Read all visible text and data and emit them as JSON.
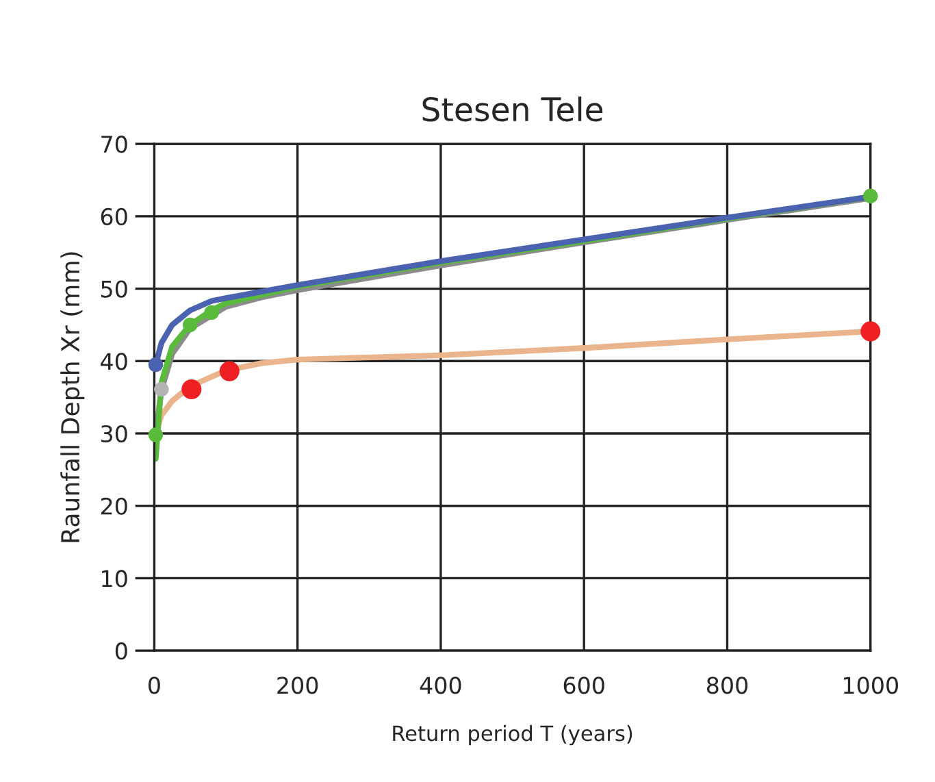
{
  "chart_data": {
    "type": "line",
    "title": "Stesen Tele",
    "xlabel": "Return period T (years)",
    "ylabel": "Raunfall Depth Xr (mm)",
    "xlim": [
      0,
      1000
    ],
    "ylim": [
      0,
      70
    ],
    "xticks": [
      0,
      200,
      400,
      600,
      800,
      1000
    ],
    "yticks": [
      0,
      10,
      20,
      30,
      40,
      50,
      60,
      70
    ],
    "grid": true,
    "legend": false,
    "series": [
      {
        "color": "#eab48c",
        "x": [
          2,
          10,
          25,
          50,
          100,
          150,
          200,
          400,
          600,
          800,
          1000
        ],
        "values": [
          30,
          32.5,
          34.5,
          36.5,
          38.7,
          39.7,
          40.2,
          40.8,
          41.8,
          43,
          44.1
        ]
      },
      {
        "color": "#8c8c8c",
        "x": [
          2,
          10,
          25,
          50,
          100,
          150,
          200,
          400,
          600,
          800,
          1000
        ],
        "values": [
          30,
          36,
          41,
          44.5,
          47.5,
          48.8,
          49.8,
          53.2,
          56.4,
          59.5,
          62.5
        ]
      },
      {
        "color": "#5aba3c",
        "x": [
          2,
          10,
          25,
          50,
          80,
          100,
          200,
          400,
          600,
          800,
          1000
        ],
        "values": [
          26.5,
          37,
          42,
          45,
          47,
          48,
          50.3,
          53.6,
          56.6,
          59.7,
          62.7
        ]
      },
      {
        "color": "#4a62b0",
        "x": [
          2,
          10,
          25,
          50,
          80,
          100,
          200,
          400,
          600,
          800,
          1000
        ],
        "values": [
          39.5,
          42.5,
          45,
          47,
          48.3,
          48.7,
          50.5,
          53.8,
          56.8,
          59.8,
          62.7
        ]
      },
      {
        "type": "scatter",
        "marker": "circle",
        "color": "#b4b4b4",
        "x": [
          10
        ],
        "values": [
          36.1
        ]
      },
      {
        "type": "scatter",
        "marker": "circle",
        "color": "#ee2024",
        "x": [
          52,
          105,
          1000
        ],
        "values": [
          36.1,
          38.6,
          44.1
        ]
      },
      {
        "type": "scatter",
        "marker": "circle",
        "color": "#5aba3c",
        "x": [
          2,
          50,
          80,
          1000
        ],
        "values": [
          29.8,
          45,
          46.7,
          62.8
        ]
      },
      {
        "type": "scatter",
        "marker": "circle",
        "color": "#4a62b0",
        "x": [
          2
        ],
        "values": [
          39.5
        ]
      }
    ]
  }
}
